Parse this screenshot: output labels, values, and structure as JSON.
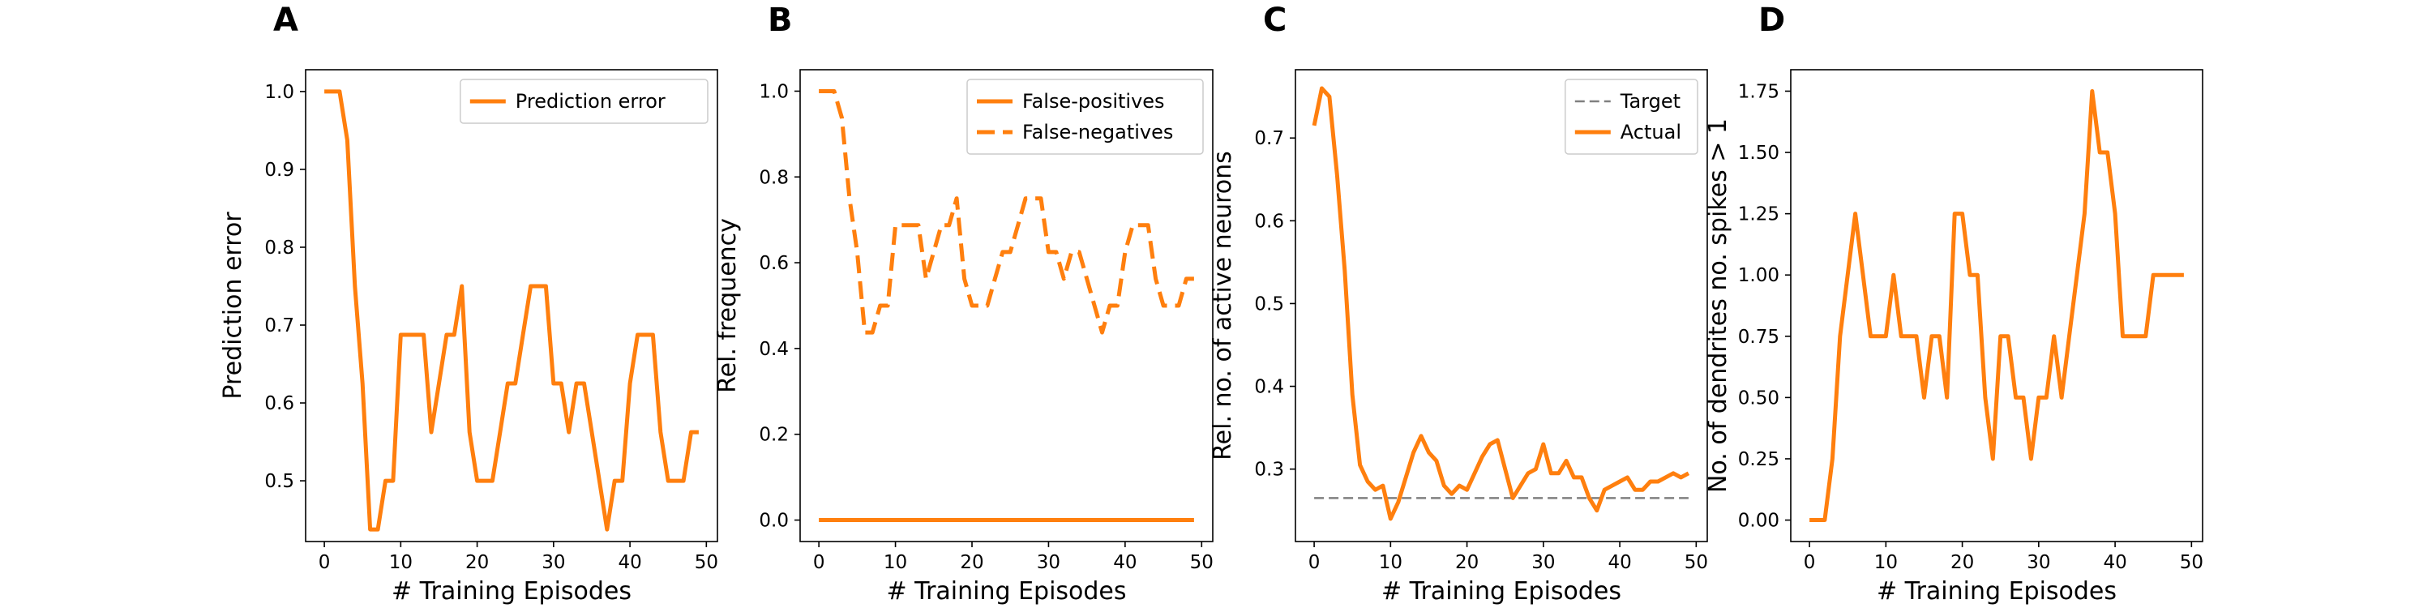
{
  "colors": {
    "orange": "#ff7f0e",
    "target": "#808080",
    "axis": "#000000"
  },
  "chart_data": [
    {
      "type": "line",
      "panel_label": "A",
      "xlabel": "# Training Episodes",
      "ylabel": "Prediction error",
      "xlim": [
        -2.45,
        51.45
      ],
      "ylim": [
        0.422,
        1.028
      ],
      "xticks": [
        0,
        10,
        20,
        30,
        40,
        50
      ],
      "xtick_labels": [
        "0",
        "10",
        "20",
        "30",
        "40",
        "50"
      ],
      "yticks": [
        0.5,
        0.6,
        0.7,
        0.8,
        0.9,
        1.0
      ],
      "ytick_labels": [
        "0.5",
        "0.6",
        "0.7",
        "0.8",
        "0.9",
        "1.0"
      ],
      "legend": {
        "loc": "upper right",
        "entries": [
          {
            "name": "Prediction error",
            "style": "solid"
          }
        ]
      },
      "series": [
        {
          "name": "Prediction error",
          "color": "#ff7f0e",
          "style": "solid",
          "x": [
            0,
            1,
            2,
            3,
            4,
            5,
            6,
            7,
            8,
            9,
            10,
            11,
            12,
            13,
            14,
            15,
            16,
            17,
            18,
            19,
            20,
            21,
            22,
            23,
            24,
            25,
            26,
            27,
            28,
            29,
            30,
            31,
            32,
            33,
            34,
            35,
            36,
            37,
            38,
            39,
            40,
            41,
            42,
            43,
            44,
            45,
            46,
            47,
            48,
            49
          ],
          "y": [
            1.0,
            1.0,
            1.0,
            0.9375,
            0.75,
            0.625,
            0.4375,
            0.4375,
            0.5,
            0.5,
            0.6875,
            0.6875,
            0.6875,
            0.6875,
            0.5625,
            0.625,
            0.6875,
            0.6875,
            0.75,
            0.5625,
            0.5,
            0.5,
            0.5,
            0.5625,
            0.625,
            0.625,
            0.6875,
            0.75,
            0.75,
            0.75,
            0.625,
            0.625,
            0.5625,
            0.625,
            0.625,
            0.5625,
            0.5,
            0.4375,
            0.5,
            0.5,
            0.625,
            0.6875,
            0.6875,
            0.6875,
            0.5625,
            0.5,
            0.5,
            0.5,
            0.5625,
            0.5625
          ]
        }
      ]
    },
    {
      "type": "line",
      "panel_label": "B",
      "xlabel": "# Training Episodes",
      "ylabel": "Rel. frequency",
      "xlim": [
        -2.45,
        51.45
      ],
      "ylim": [
        -0.05,
        1.05
      ],
      "xticks": [
        0,
        10,
        20,
        30,
        40,
        50
      ],
      "xtick_labels": [
        "0",
        "10",
        "20",
        "30",
        "40",
        "50"
      ],
      "yticks": [
        0.0,
        0.2,
        0.4,
        0.6,
        0.8,
        1.0
      ],
      "ytick_labels": [
        "0.0",
        "0.2",
        "0.4",
        "0.6",
        "0.8",
        "1.0"
      ],
      "legend": {
        "loc": "upper right",
        "entries": [
          {
            "name": "False-positives",
            "style": "solid"
          },
          {
            "name": "False-negatives",
            "style": "dashed"
          }
        ]
      },
      "series": [
        {
          "name": "False-positives",
          "color": "#ff7f0e",
          "style": "solid",
          "x": [
            0,
            49
          ],
          "y": [
            0.0,
            0.0
          ]
        },
        {
          "name": "False-negatives",
          "color": "#ff7f0e",
          "style": "dashed",
          "x": [
            0,
            1,
            2,
            3,
            4,
            5,
            6,
            7,
            8,
            9,
            10,
            11,
            12,
            13,
            14,
            15,
            16,
            17,
            18,
            19,
            20,
            21,
            22,
            23,
            24,
            25,
            26,
            27,
            28,
            29,
            30,
            31,
            32,
            33,
            34,
            35,
            36,
            37,
            38,
            39,
            40,
            41,
            42,
            43,
            44,
            45,
            46,
            47,
            48,
            49
          ],
          "y": [
            1.0,
            1.0,
            1.0,
            0.9375,
            0.75,
            0.625,
            0.4375,
            0.4375,
            0.5,
            0.5,
            0.6875,
            0.6875,
            0.6875,
            0.6875,
            0.5625,
            0.625,
            0.6875,
            0.6875,
            0.75,
            0.5625,
            0.5,
            0.5,
            0.5,
            0.5625,
            0.625,
            0.625,
            0.6875,
            0.75,
            0.75,
            0.75,
            0.625,
            0.625,
            0.5625,
            0.625,
            0.625,
            0.5625,
            0.5,
            0.4375,
            0.5,
            0.5,
            0.625,
            0.6875,
            0.6875,
            0.6875,
            0.5625,
            0.5,
            0.5,
            0.5,
            0.5625,
            0.5625
          ]
        }
      ]
    },
    {
      "type": "line",
      "panel_label": "C",
      "xlabel": "# Training Episodes",
      "ylabel": "Rel. no. of active neurons",
      "xlim": [
        -2.45,
        51.45
      ],
      "ylim": [
        0.2125,
        0.7825
      ],
      "xticks": [
        0,
        10,
        20,
        30,
        40,
        50
      ],
      "xtick_labels": [
        "0",
        "10",
        "20",
        "30",
        "40",
        "50"
      ],
      "yticks": [
        0.3,
        0.4,
        0.5,
        0.6,
        0.7
      ],
      "ytick_labels": [
        "0.3",
        "0.4",
        "0.5",
        "0.6",
        "0.7"
      ],
      "legend": {
        "loc": "upper right",
        "entries": [
          {
            "name": "Target",
            "style": "dashed-thin"
          },
          {
            "name": "Actual",
            "style": "solid"
          }
        ]
      },
      "series": [
        {
          "name": "Target",
          "color": "#808080",
          "style": "dashed-thin",
          "x": [
            0,
            49
          ],
          "y": [
            0.265,
            0.265
          ]
        },
        {
          "name": "Actual",
          "color": "#ff7f0e",
          "style": "solid",
          "x": [
            0,
            1,
            2,
            3,
            4,
            5,
            6,
            7,
            8,
            9,
            10,
            11,
            12,
            13,
            14,
            15,
            16,
            17,
            18,
            19,
            20,
            21,
            22,
            23,
            24,
            25,
            26,
            27,
            28,
            29,
            30,
            31,
            32,
            33,
            34,
            35,
            36,
            37,
            38,
            39,
            40,
            41,
            42,
            43,
            44,
            45,
            46,
            47,
            48,
            49
          ],
          "y": [
            0.715,
            0.76,
            0.75,
            0.655,
            0.54,
            0.39,
            0.305,
            0.285,
            0.275,
            0.28,
            0.24,
            0.26,
            0.29,
            0.32,
            0.34,
            0.32,
            0.31,
            0.28,
            0.27,
            0.28,
            0.275,
            0.295,
            0.315,
            0.33,
            0.335,
            0.3,
            0.265,
            0.28,
            0.295,
            0.3,
            0.33,
            0.295,
            0.295,
            0.31,
            0.29,
            0.29,
            0.265,
            0.25,
            0.275,
            0.28,
            0.285,
            0.29,
            0.275,
            0.275,
            0.285,
            0.285,
            0.29,
            0.295,
            0.29,
            0.295
          ]
        }
      ]
    },
    {
      "type": "line",
      "panel_label": "D",
      "xlabel": "# Training Episodes",
      "ylabel": "No. of dendrites no. spikes > 1",
      "xlim": [
        -2.45,
        51.45
      ],
      "ylim": [
        -0.0875,
        1.8375
      ],
      "xticks": [
        0,
        10,
        20,
        30,
        40,
        50
      ],
      "xtick_labels": [
        "0",
        "10",
        "20",
        "30",
        "40",
        "50"
      ],
      "yticks": [
        0.0,
        0.25,
        0.5,
        0.75,
        1.0,
        1.25,
        1.5,
        1.75
      ],
      "ytick_labels": [
        "0.00",
        "0.25",
        "0.50",
        "0.75",
        "1.00",
        "1.25",
        "1.50",
        "1.75"
      ],
      "legend": null,
      "series": [
        {
          "name": "",
          "color": "#ff7f0e",
          "style": "solid",
          "x": [
            0,
            1,
            2,
            3,
            4,
            5,
            6,
            7,
            8,
            9,
            10,
            11,
            12,
            13,
            14,
            15,
            16,
            17,
            18,
            19,
            20,
            21,
            22,
            23,
            24,
            25,
            26,
            27,
            28,
            29,
            30,
            31,
            32,
            33,
            34,
            35,
            36,
            37,
            38,
            39,
            40,
            41,
            42,
            43,
            44,
            45,
            46,
            47,
            48,
            49
          ],
          "y": [
            0,
            0,
            0,
            0.25,
            0.75,
            1.0,
            1.25,
            1.0,
            0.75,
            0.75,
            0.75,
            1.0,
            0.75,
            0.75,
            0.75,
            0.5,
            0.75,
            0.75,
            0.5,
            1.25,
            1.25,
            1.0,
            1.0,
            0.5,
            0.25,
            0.75,
            0.75,
            0.5,
            0.5,
            0.25,
            0.5,
            0.5,
            0.75,
            0.5,
            0.75,
            1.0,
            1.25,
            1.75,
            1.5,
            1.5,
            1.25,
            0.75,
            0.75,
            0.75,
            0.75,
            1.0,
            1.0,
            1.0,
            1.0,
            1.0
          ]
        }
      ]
    }
  ]
}
